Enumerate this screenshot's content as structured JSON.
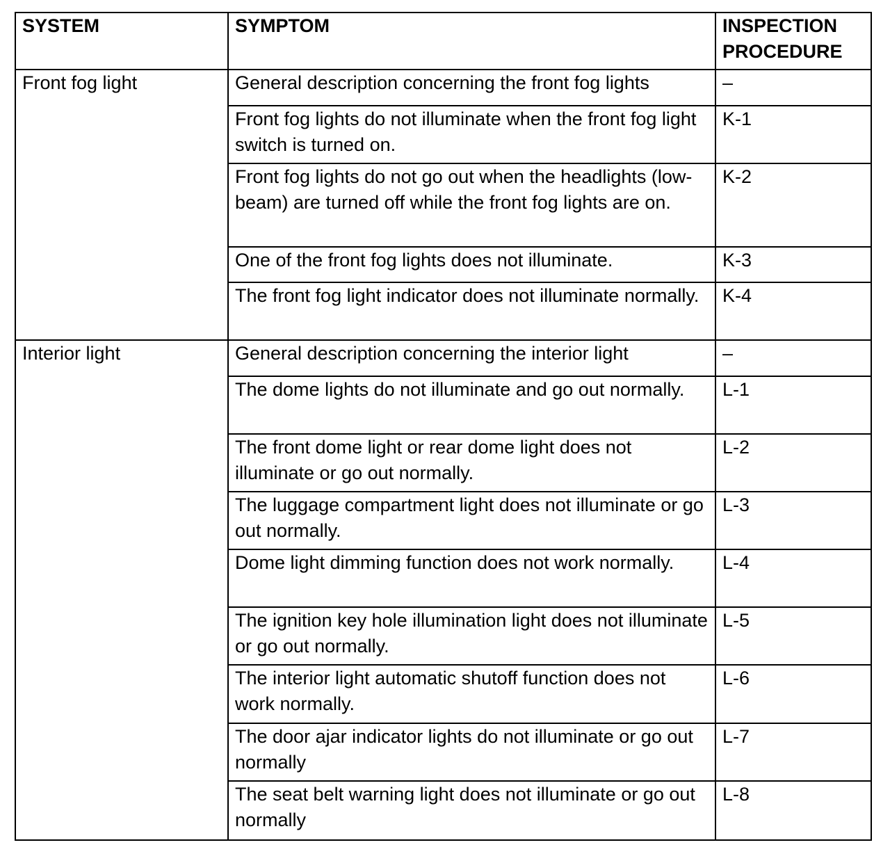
{
  "headers": {
    "system": "SYSTEM",
    "symptom": "SYMPTOM",
    "procedure": "INSPECTION PROCEDURE"
  },
  "groups": [
    {
      "system": "Front fog light",
      "rows": [
        {
          "symptom": "General description concerning the front fog lights",
          "procedure": "–"
        },
        {
          "symptom": "Front fog lights do not illuminate when the front fog light switch is turned on.",
          "procedure": "K-1"
        },
        {
          "symptom": "Front fog lights do not go out when the headlights (low-beam) are turned off while the front fog lights are on.",
          "procedure": "K-2"
        },
        {
          "symptom": "One of the front fog lights does not illuminate.",
          "procedure": "K-3"
        },
        {
          "symptom": "The front fog light indicator does not illuminate normally.",
          "procedure": "K-4"
        }
      ]
    },
    {
      "system": "Interior light",
      "rows": [
        {
          "symptom": "General description concerning the interior light",
          "procedure": "–"
        },
        {
          "symptom": "The dome lights do not illuminate and go out normally.",
          "procedure": "L-1"
        },
        {
          "symptom": "The front dome light or rear dome light does not illuminate or go out normally.",
          "procedure": "L-2"
        },
        {
          "symptom": "The luggage compartment light does not illuminate or go out normally.",
          "procedure": "L-3"
        },
        {
          "symptom": "Dome light dimming function does not work normally.",
          "procedure": "L-4"
        },
        {
          "symptom": "The ignition key hole illumination light does not illuminate or go out normally.",
          "procedure": "L-5"
        },
        {
          "symptom": "The interior light automatic shutoff function does not work normally.",
          "procedure": "L-6"
        },
        {
          "symptom": "The door ajar indicator lights do not illuminate or go out normally",
          "procedure": "L-7"
        },
        {
          "symptom": "The seat belt warning light does not illuminate or go out normally",
          "procedure": "L-8"
        }
      ]
    }
  ]
}
